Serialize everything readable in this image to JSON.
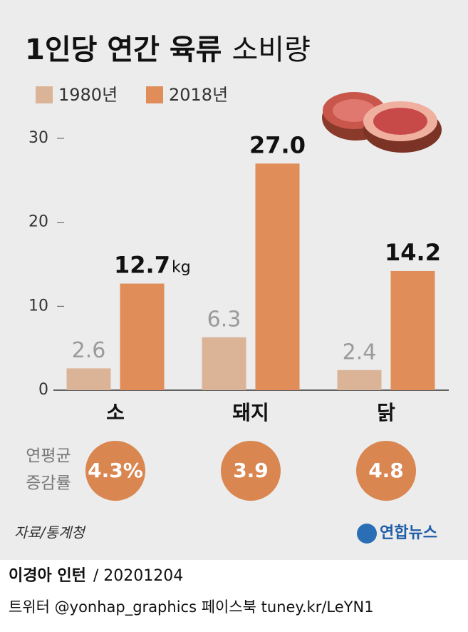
{
  "chart_data": {
    "type": "bar",
    "title": "1인당 연간 육류",
    "title_suffix": "소비량",
    "categories": [
      "소",
      "돼지",
      "닭"
    ],
    "series": [
      {
        "name": "1980년",
        "color": "#dbb497",
        "values": [
          2.6,
          6.3,
          2.4
        ]
      },
      {
        "name": "2018년",
        "color": "#e08d59",
        "values": [
          12.7,
          27.0,
          14.2
        ],
        "value_labels": [
          "12.7",
          "27.0",
          "14.2"
        ],
        "unit": "kg"
      }
    ],
    "ylim": [
      0,
      30
    ],
    "yticks": [
      0,
      10,
      20,
      30
    ],
    "growth": {
      "label_lines": [
        "연평균",
        "증감률"
      ],
      "color": "#d98650",
      "values": [
        4.3,
        3.9,
        4.8
      ],
      "value_labels": [
        "4.3%",
        "3.9",
        "4.8"
      ]
    },
    "source": "자료/통계청",
    "logo": "연합뉴스",
    "author": "이경아 인턴",
    "date": "/ 20201204",
    "social": "트위터 @yonhap_graphics  페이스북 tuney.kr/LeYN1"
  }
}
